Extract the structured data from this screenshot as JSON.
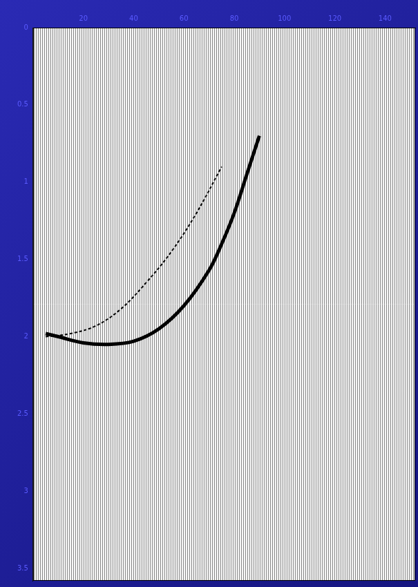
{
  "chart_data": {
    "type": "line",
    "xlim": [
      0,
      152
    ],
    "xticks": [
      20,
      40,
      60,
      80,
      100,
      120,
      140
    ],
    "ylim": [
      0,
      3.58
    ],
    "yticks": [
      0,
      0.5,
      1,
      1.5,
      2,
      2.5,
      3,
      3.5
    ],
    "grid": false,
    "series": [
      {
        "color": "#000000",
        "line_style": "solid",
        "x": [
          5,
          10,
          20,
          30,
          40,
          50,
          60,
          70,
          75,
          80,
          85,
          90
        ],
        "values": [
          1.98,
          2.0,
          2.04,
          2.05,
          2.03,
          1.95,
          1.8,
          1.57,
          1.4,
          1.2,
          0.95,
          0.7
        ]
      },
      {
        "color": "#000000",
        "line_style": "dashed",
        "x": [
          5,
          15,
          25,
          35,
          45,
          55,
          65,
          75
        ],
        "values": [
          2.0,
          1.98,
          1.93,
          1.82,
          1.65,
          1.45,
          1.2,
          0.9
        ]
      }
    ]
  }
}
